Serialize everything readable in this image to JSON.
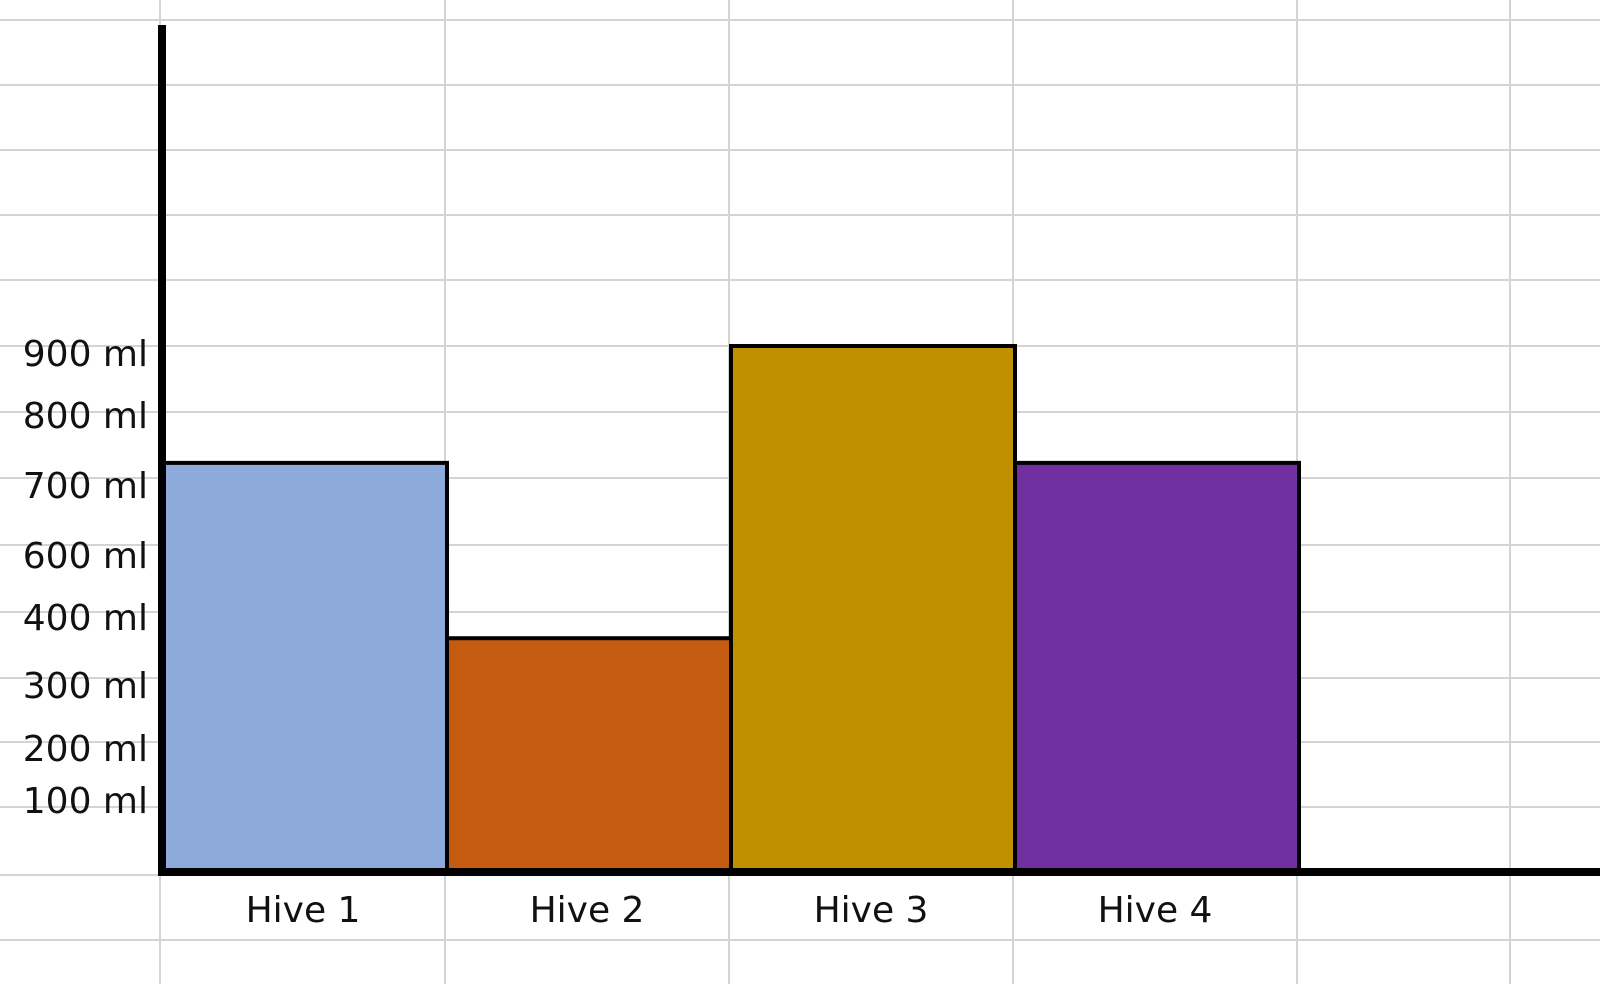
{
  "chart_data": {
    "type": "bar",
    "categories": [
      "Hive 1",
      "Hive 2",
      "Hive 3",
      "Hive 4"
    ],
    "values": [
      700,
      400,
      900,
      700
    ],
    "colors": [
      "#8eaadb",
      "#c55a11",
      "#bf9000",
      "#7030a0"
    ],
    "y_tick_labels": [
      {
        "value": 100,
        "label": "100 ml"
      },
      {
        "value": 200,
        "label": "200 ml"
      },
      {
        "value": 300,
        "label": "300 ml"
      },
      {
        "value": 400,
        "label": "400 ml"
      },
      {
        "value": 600,
        "label": "600 ml"
      },
      {
        "value": 700,
        "label": "700 ml"
      },
      {
        "value": 800,
        "label": "800 ml"
      },
      {
        "value": 900,
        "label": "900 ml"
      }
    ],
    "title": "",
    "xlabel": "",
    "ylabel": "",
    "grid": true,
    "legend": "none"
  }
}
